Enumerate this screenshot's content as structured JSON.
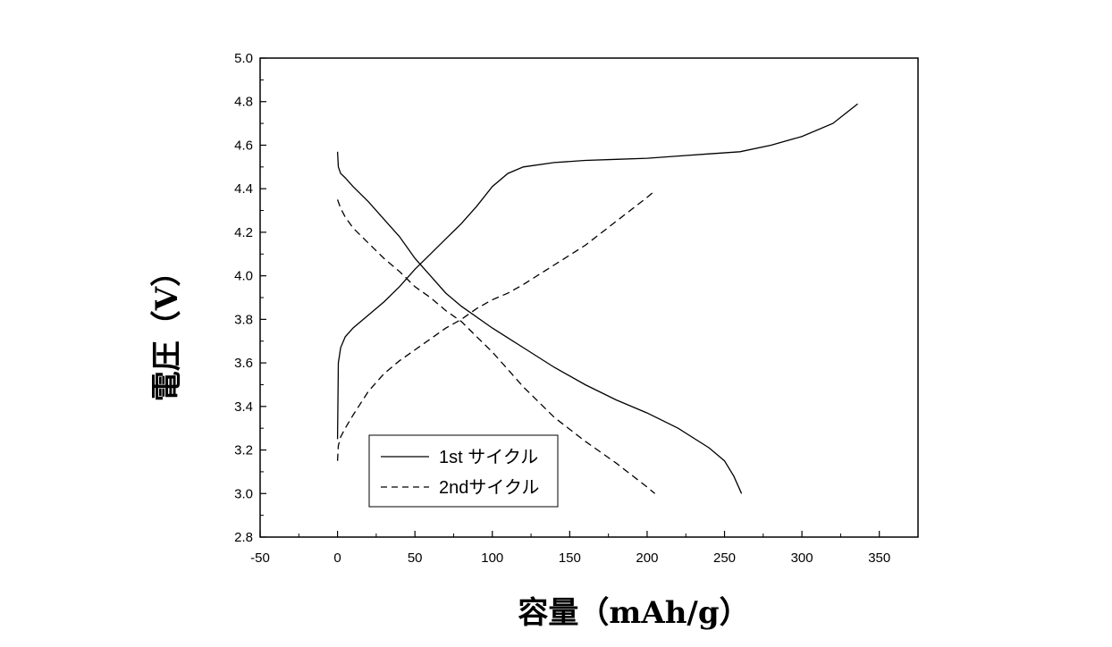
{
  "chart_data": {
    "type": "line",
    "title": "",
    "xlabel": "容量（mAh/g）",
    "ylabel": "電圧（V）",
    "xlim": [
      -50,
      375
    ],
    "ylim": [
      2.8,
      5.0
    ],
    "xticks": [
      -50,
      0,
      50,
      100,
      150,
      200,
      250,
      300,
      350
    ],
    "yticks": [
      2.8,
      3.0,
      3.2,
      3.4,
      3.6,
      3.8,
      4.0,
      4.2,
      4.4,
      4.6,
      4.8,
      5.0
    ],
    "legend": {
      "placement": "bottom-left",
      "entries": [
        "1st サイクル",
        "2ndサイクル"
      ]
    },
    "grid": false,
    "series": [
      {
        "name": "1st サイクル",
        "style": "solid",
        "segments": [
          {
            "x": [
              0,
              0.5,
              2,
              5,
              10,
              20,
              30,
              40,
              50,
              60,
              70,
              80,
              90,
              100,
              110,
              120,
              140,
              160,
              180,
              200,
              220,
              240,
              260,
              280,
              300,
              320,
              336
            ],
            "y": [
              3.25,
              3.6,
              3.67,
              3.72,
              3.76,
              3.82,
              3.88,
              3.95,
              4.03,
              4.1,
              4.17,
              4.24,
              4.32,
              4.41,
              4.47,
              4.5,
              4.52,
              4.53,
              4.535,
              4.54,
              4.55,
              4.56,
              4.57,
              4.6,
              4.64,
              4.7,
              4.79
            ]
          },
          {
            "x": [
              0,
              0.5,
              2,
              5,
              10,
              20,
              30,
              40,
              50,
              60,
              70,
              80,
              100,
              120,
              140,
              160,
              180,
              200,
              220,
              240,
              250,
              256,
              261
            ],
            "y": [
              4.57,
              4.5,
              4.47,
              4.45,
              4.41,
              4.34,
              4.26,
              4.18,
              4.08,
              4.0,
              3.92,
              3.86,
              3.76,
              3.67,
              3.58,
              3.5,
              3.43,
              3.37,
              3.3,
              3.21,
              3.15,
              3.08,
              3.0
            ]
          }
        ]
      },
      {
        "name": "2ndサイクル",
        "style": "dashed",
        "segments": [
          {
            "x": [
              0,
              0.5,
              2,
              5,
              10,
              20,
              30,
              40,
              50,
              60,
              70,
              80,
              90,
              100,
              110,
              120,
              140,
              160,
              180,
              200,
              205
            ],
            "y": [
              3.15,
              3.22,
              3.26,
              3.3,
              3.36,
              3.47,
              3.55,
              3.61,
              3.66,
              3.71,
              3.76,
              3.8,
              3.85,
              3.89,
              3.92,
              3.96,
              4.05,
              4.14,
              4.25,
              4.36,
              4.39
            ]
          },
          {
            "x": [
              0,
              2,
              5,
              10,
              20,
              30,
              40,
              50,
              60,
              70,
              80,
              90,
              100,
              110,
              120,
              130,
              140,
              160,
              180,
              200,
              205
            ],
            "y": [
              4.35,
              4.31,
              4.27,
              4.22,
              4.15,
              4.08,
              4.02,
              3.95,
              3.9,
              3.84,
              3.79,
              3.72,
              3.65,
              3.57,
              3.49,
              3.42,
              3.35,
              3.24,
              3.14,
              3.03,
              3.0
            ]
          }
        ]
      }
    ]
  }
}
